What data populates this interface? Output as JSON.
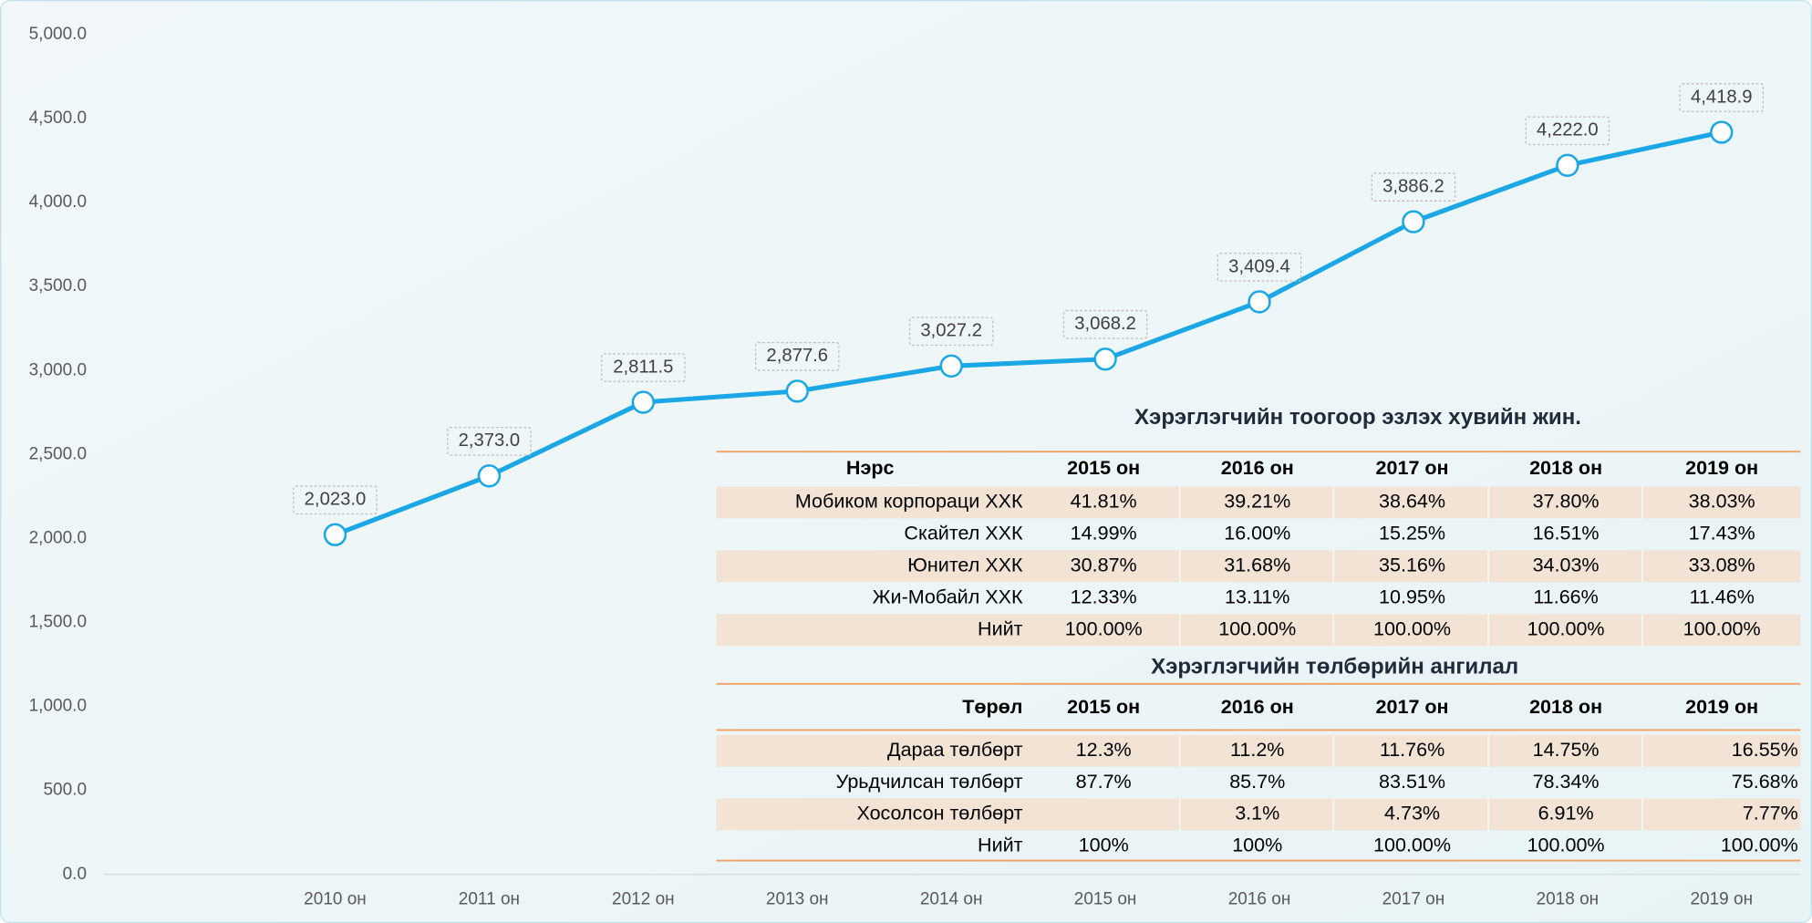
{
  "chart_data": {
    "type": "line",
    "color": "#1ba7e5",
    "categories": [
      "2010 он",
      "2011 он",
      "2012 он",
      "2013 он",
      "2014 он",
      "2015 он",
      "2016 он",
      "2017 он",
      "2018 он",
      "2019 он"
    ],
    "values": [
      2023.0,
      2373.0,
      2811.5,
      2877.6,
      3027.2,
      3068.2,
      3409.4,
      3886.2,
      4222.0,
      4418.9
    ],
    "value_labels": [
      "2,023.0",
      "2,373.0",
      "2,811.5",
      "2,877.6",
      "3,027.2",
      "3,068.2",
      "3,409.4",
      "3,886.2",
      "4,222.0",
      "4,418.9"
    ],
    "ylim": [
      0,
      5000
    ],
    "yticks": [
      {
        "value": 0,
        "label": "0.0"
      },
      {
        "value": 500,
        "label": "500.0"
      },
      {
        "value": 1000,
        "label": "1,000.0"
      },
      {
        "value": 1500,
        "label": "1,500.0"
      },
      {
        "value": 2000,
        "label": "2,000.0"
      },
      {
        "value": 2500,
        "label": "2,500.0"
      },
      {
        "value": 3000,
        "label": "3,000.0"
      },
      {
        "value": 3500,
        "label": "3,500.0"
      },
      {
        "value": 4000,
        "label": "4,000.0"
      },
      {
        "value": 4500,
        "label": "4,500.0"
      },
      {
        "value": 5000,
        "label": "5,000.0"
      }
    ]
  },
  "tables": [
    {
      "title": "Хэрэглэгчийн тоогоор эзлэх хувийн жин.",
      "header": [
        "Нэрс",
        "2015 он",
        "2016 он",
        "2017 он",
        "2018 он",
        "2019 он"
      ],
      "rows": [
        [
          "Мобиком корпораци ХХК",
          "41.81%",
          "39.21%",
          "38.64%",
          "37.80%",
          "38.03%"
        ],
        [
          "Скайтел ХХК",
          "14.99%",
          "16.00%",
          "15.25%",
          "16.51%",
          "17.43%"
        ],
        [
          "Юнител ХХК",
          "30.87%",
          "31.68%",
          "35.16%",
          "34.03%",
          "33.08%"
        ],
        [
          "Жи-Мобайл ХХК",
          "12.33%",
          "13.11%",
          "10.95%",
          "11.66%",
          "11.46%"
        ],
        [
          "Нийт",
          "100.00%",
          "100.00%",
          "100.00%",
          "100.00%",
          "100.00%"
        ]
      ]
    },
    {
      "title": "Хэрэглэгчийн төлбөрийн ангилал",
      "header": [
        "Төрөл",
        "2015 он",
        "2016 он",
        "2017 он",
        "2018 он",
        "2019 он"
      ],
      "rows": [
        [
          "Дараа төлбөрт",
          "12.3%",
          "11.2%",
          "11.76%",
          "14.75%",
          "16.55%"
        ],
        [
          "Урьдчилсан төлбөрт",
          "87.7%",
          "85.7%",
          "83.51%",
          "78.34%",
          "75.68%"
        ],
        [
          "Хосолсон төлбөрт",
          null,
          "3.1%",
          "4.73%",
          "6.91%",
          "7.77%"
        ],
        [
          "Нийт",
          "100%",
          "100%",
          "100.00%",
          "100.00%",
          "100.00%"
        ]
      ]
    }
  ]
}
